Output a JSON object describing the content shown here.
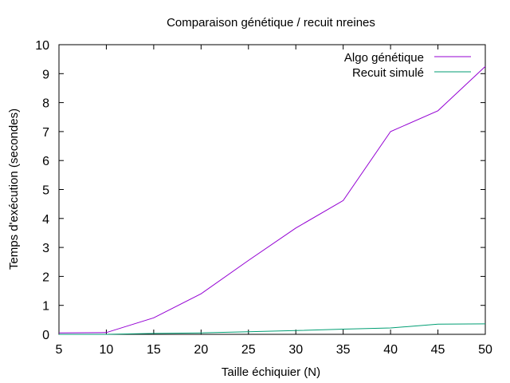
{
  "chart_data": {
    "type": "line",
    "title": "Comparaison génétique / recuit nreines",
    "xlabel": "Taille échiquier (N)",
    "ylabel": "Temps d'exécution (secondes)",
    "xlim": [
      5,
      50
    ],
    "ylim": [
      0,
      10
    ],
    "xticks": [
      5,
      10,
      15,
      20,
      25,
      30,
      35,
      40,
      45,
      50
    ],
    "yticks": [
      0,
      1,
      2,
      3,
      4,
      5,
      6,
      7,
      8,
      9,
      10
    ],
    "grid": false,
    "legend": "top-right",
    "x": [
      5,
      10,
      15,
      20,
      25,
      30,
      35,
      40,
      45,
      50
    ],
    "series": [
      {
        "name": "Algo génétique",
        "color": "#9400d3",
        "values": [
          0.05,
          0.06,
          0.57,
          1.4,
          2.55,
          3.67,
          4.62,
          7.0,
          7.72,
          9.25
        ]
      },
      {
        "name": "Recuit simulé",
        "color": "#009e73",
        "values": [
          0.0,
          0.0,
          0.03,
          0.05,
          0.09,
          0.13,
          0.18,
          0.22,
          0.35,
          0.36
        ]
      }
    ]
  }
}
